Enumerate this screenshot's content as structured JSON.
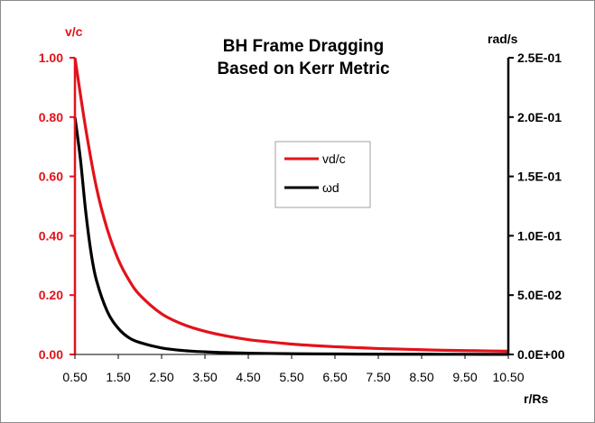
{
  "chart_data": {
    "type": "line",
    "title_lines": [
      "BH Frame Dragging",
      "Based on Kerr Metric"
    ],
    "left_axis": {
      "label": "v/c",
      "color": "#e3121a",
      "ylim": [
        0,
        1
      ],
      "ticks": [
        0,
        0.2,
        0.4,
        0.6,
        0.8,
        1.0
      ],
      "tick_labels": [
        "0.00",
        "0.20",
        "0.40",
        "0.60",
        "0.80",
        "1.00"
      ]
    },
    "right_axis": {
      "label": "rad/s",
      "color": "#000000",
      "ylim": [
        0,
        0.25
      ],
      "ticks": [
        0,
        0.05,
        0.1,
        0.15,
        0.2,
        0.25
      ],
      "tick_labels": [
        "0.0E+00",
        "5.0E-02",
        "1.0E-01",
        "1.5E-01",
        "2.0E-01",
        "2.5E-01"
      ]
    },
    "x_axis": {
      "label": "r/Rs",
      "xlim": [
        0.5,
        10.5
      ],
      "ticks": [
        0.5,
        1.5,
        2.5,
        3.5,
        4.5,
        5.5,
        6.5,
        7.5,
        8.5,
        9.5,
        10.5
      ],
      "tick_labels": [
        "0.50",
        "1.50",
        "2.50",
        "3.50",
        "4.50",
        "5.50",
        "6.50",
        "7.50",
        "8.50",
        "9.50",
        "10.50"
      ]
    },
    "legend_position": "center",
    "grid": false,
    "series": [
      {
        "name": "vd/c",
        "axis": "left",
        "color": "#e3121a",
        "x": [
          0.5,
          0.75,
          1.0,
          1.25,
          1.5,
          1.75,
          2.0,
          2.5,
          3.0,
          3.5,
          4.0,
          4.5,
          5.0,
          5.5,
          6.0,
          6.5,
          7.0,
          7.5,
          8.0,
          8.5,
          9.0,
          9.5,
          10.0,
          10.5
        ],
        "y": [
          1.0,
          0.76,
          0.56,
          0.42,
          0.32,
          0.25,
          0.2,
          0.137,
          0.101,
          0.078,
          0.062,
          0.05,
          0.042,
          0.035,
          0.03,
          0.026,
          0.023,
          0.02,
          0.018,
          0.016,
          0.014,
          0.013,
          0.012,
          0.011
        ]
      },
      {
        "name": "ωd",
        "axis": "right",
        "color": "#000000",
        "x": [
          0.5,
          0.625,
          0.75,
          0.875,
          1.0,
          1.25,
          1.5,
          1.75,
          2.0,
          2.5,
          3.0,
          3.5,
          4.0,
          4.5,
          5.0,
          6.0,
          7.0,
          8.0,
          9.0,
          10.0,
          10.5
        ],
        "y": [
          0.2,
          0.165,
          0.12,
          0.085,
          0.062,
          0.036,
          0.022,
          0.014,
          0.01,
          0.0055,
          0.0033,
          0.0022,
          0.0015,
          0.0011,
          0.0008,
          0.0005,
          0.0003,
          0.0002,
          0.00015,
          0.0001,
          8e-05
        ]
      }
    ]
  }
}
